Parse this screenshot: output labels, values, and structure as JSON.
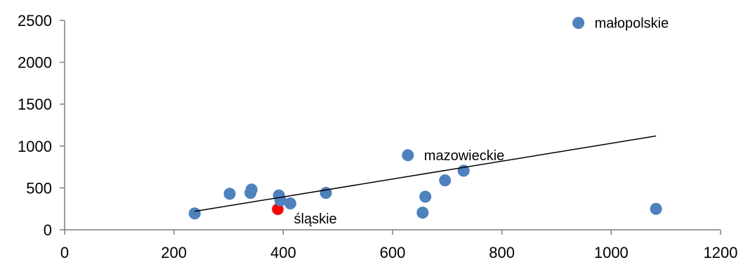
{
  "chart_data": {
    "type": "scatter",
    "title": "",
    "xlabel": "",
    "ylabel": "",
    "xlim": [
      0,
      1200
    ],
    "ylim": [
      0,
      2500
    ],
    "xticks": [
      0,
      200,
      400,
      600,
      800,
      1000,
      1200
    ],
    "yticks": [
      0,
      500,
      1000,
      1500,
      2000,
      2500
    ],
    "grid": false,
    "legend": "none",
    "colors": {
      "default_point": "#4f81bd",
      "highlight_point": "#ff0000",
      "trendline": "#000000",
      "axis": "#7f7f7f"
    },
    "points": [
      {
        "x": 940,
        "y": 2470,
        "label": "małopolskie"
      },
      {
        "x": 628,
        "y": 890,
        "label": "mazowieckie"
      },
      {
        "x": 390,
        "y": 245,
        "label": "śląskie",
        "highlight": true
      },
      {
        "x": 238,
        "y": 195
      },
      {
        "x": 302,
        "y": 430
      },
      {
        "x": 340,
        "y": 440
      },
      {
        "x": 342,
        "y": 480
      },
      {
        "x": 392,
        "y": 410
      },
      {
        "x": 395,
        "y": 350
      },
      {
        "x": 413,
        "y": 315
      },
      {
        "x": 478,
        "y": 440
      },
      {
        "x": 655,
        "y": 205
      },
      {
        "x": 660,
        "y": 395
      },
      {
        "x": 696,
        "y": 590
      },
      {
        "x": 730,
        "y": 705
      },
      {
        "x": 1082,
        "y": 250
      }
    ],
    "trendline": {
      "x": [
        238,
        1082
      ],
      "y": [
        220,
        1120
      ]
    }
  }
}
